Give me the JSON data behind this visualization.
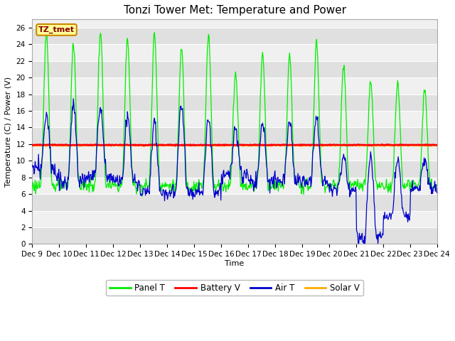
{
  "title": "Tonzi Tower Met: Temperature and Power",
  "xlabel": "Time",
  "ylabel": "Temperature (C) / Power (V)",
  "ylim": [
    0,
    27
  ],
  "yticks": [
    0,
    2,
    4,
    6,
    8,
    10,
    12,
    14,
    16,
    18,
    20,
    22,
    24,
    26
  ],
  "xtick_labels": [
    "Dec 9",
    "Dec 10",
    "Dec 11",
    "Dec 12",
    "Dec 13",
    "Dec 14",
    "Dec 15",
    "Dec 16",
    "Dec 17",
    "Dec 18",
    "Dec 19",
    "Dec 20",
    "Dec 21",
    "Dec 22",
    "Dec 23",
    "Dec 24"
  ],
  "n_days": 15,
  "battery_v_mean": 11.9,
  "solar_v_mean": 11.85,
  "panel_color": "#00ee00",
  "battery_color": "#ff0000",
  "air_color": "#0000cc",
  "solar_color": "#ffaa00",
  "fig_bg": "#ffffff",
  "plot_bg_light": "#f0f0f0",
  "plot_bg_dark": "#e0e0e0",
  "legend_label": "TZ_tmet",
  "legend_label_color": "#880000",
  "legend_label_bg": "#ffff99",
  "legend_label_edge": "#cc8800",
  "title_fontsize": 11,
  "label_fontsize": 8,
  "tick_fontsize": 7.5
}
